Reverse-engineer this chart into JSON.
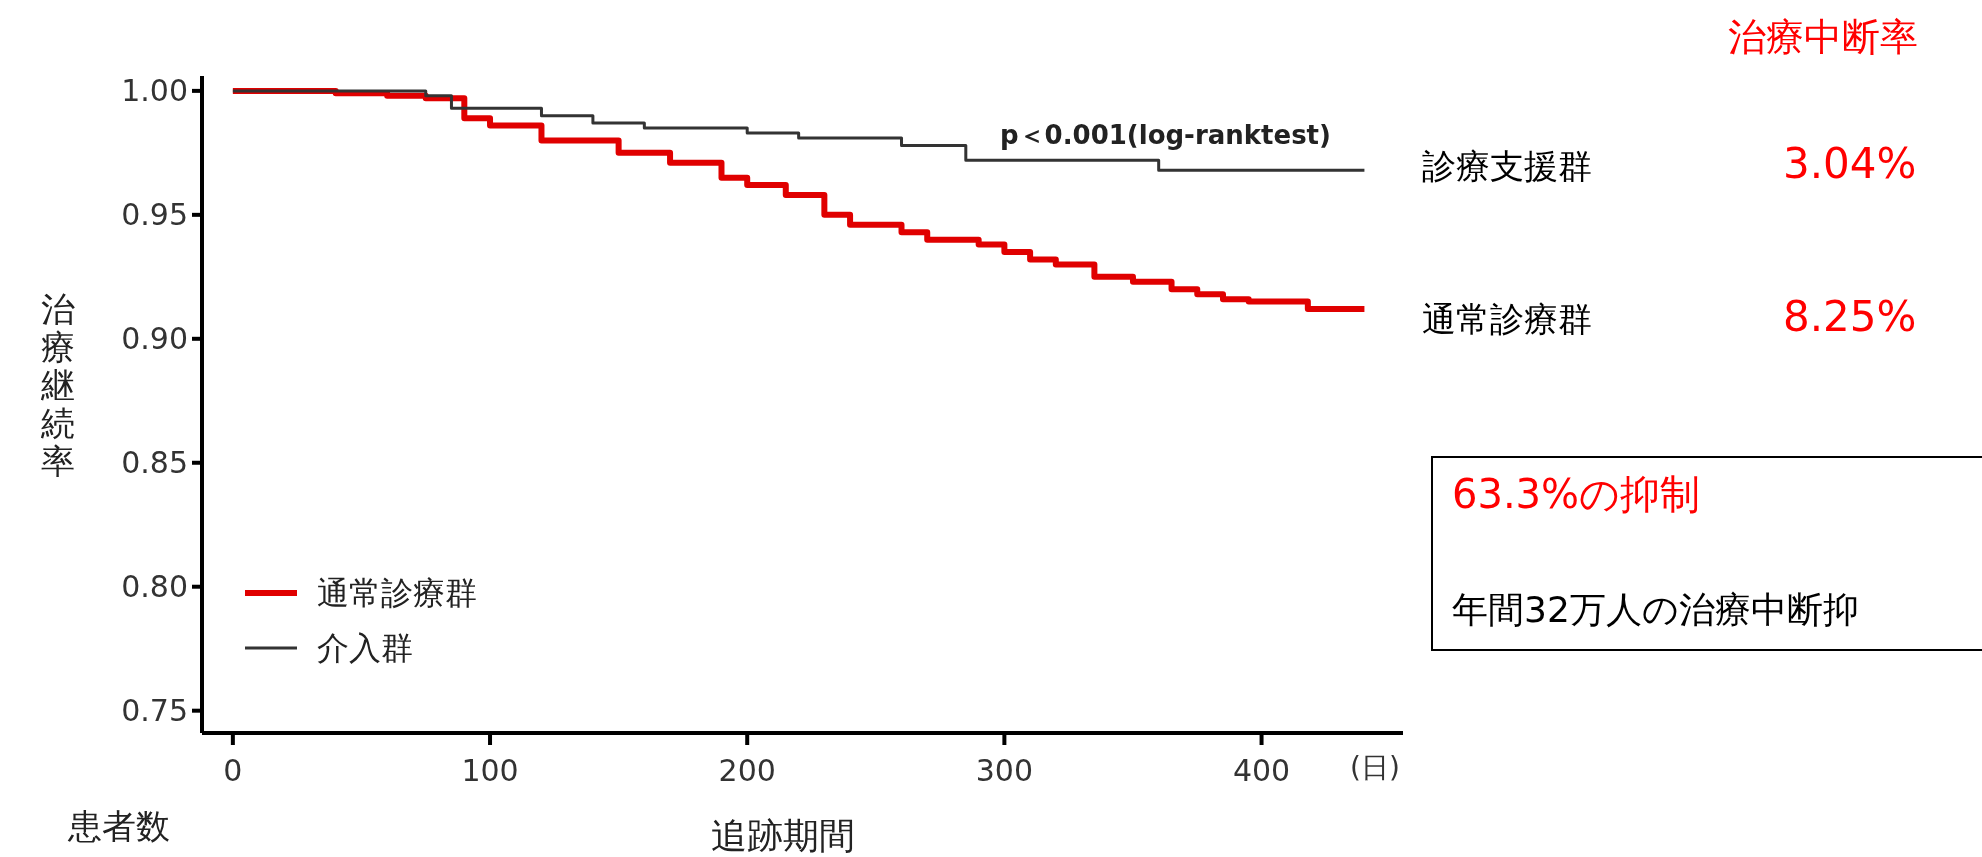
{
  "chart_data": {
    "type": "step",
    "xlabel": "追跡期間",
    "ylabel": "治療継続率",
    "xlim": [
      -12,
      455
    ],
    "ylim": [
      0.741,
      1.006
    ],
    "xticks": [
      0,
      100,
      200,
      300,
      400
    ],
    "yticks": [
      {
        "value": 0.75,
        "label": "0.75"
      },
      {
        "value": 0.8,
        "label": "0.80"
      },
      {
        "value": 0.85,
        "label": "0.85"
      },
      {
        "value": 0.9,
        "label": "0.90"
      },
      {
        "value": 0.95,
        "label": "0.95"
      },
      {
        "value": 1.0,
        "label": "1.00"
      }
    ],
    "legend": "bottom left",
    "grid": false,
    "series": [
      {
        "name": "通常診療群",
        "color": "#e00000",
        "x": [
          0,
          40,
          60,
          75,
          90,
          100,
          120,
          140,
          150,
          170,
          190,
          200,
          215,
          230,
          240,
          260,
          270,
          290,
          300,
          310,
          320,
          335,
          350,
          365,
          375,
          385,
          395,
          418,
          440
        ],
        "values": [
          1.0,
          0.999,
          0.998,
          0.997,
          0.989,
          0.986,
          0.98,
          0.98,
          0.975,
          0.971,
          0.965,
          0.962,
          0.958,
          0.95,
          0.946,
          0.943,
          0.94,
          0.938,
          0.935,
          0.932,
          0.93,
          0.925,
          0.923,
          0.92,
          0.918,
          0.916,
          0.915,
          0.912,
          0.912
        ]
      },
      {
        "name": "介入群",
        "color": "#333333",
        "x": [
          0,
          75,
          85,
          120,
          140,
          160,
          200,
          220,
          260,
          285,
          360,
          440
        ],
        "values": [
          1.0,
          0.998,
          0.993,
          0.99,
          0.987,
          0.985,
          0.983,
          0.981,
          0.978,
          0.972,
          0.968,
          0.968
        ]
      }
    ],
    "annotations": [
      "p＜0.001(log-ranktest)",
      "(日)",
      "患者数",
      "治療中断率",
      "診療支援群",
      "3.04%",
      "通常診療群",
      "8.25%",
      "63.3%の抑制",
      "年間32万人の治療中断抑"
    ]
  }
}
